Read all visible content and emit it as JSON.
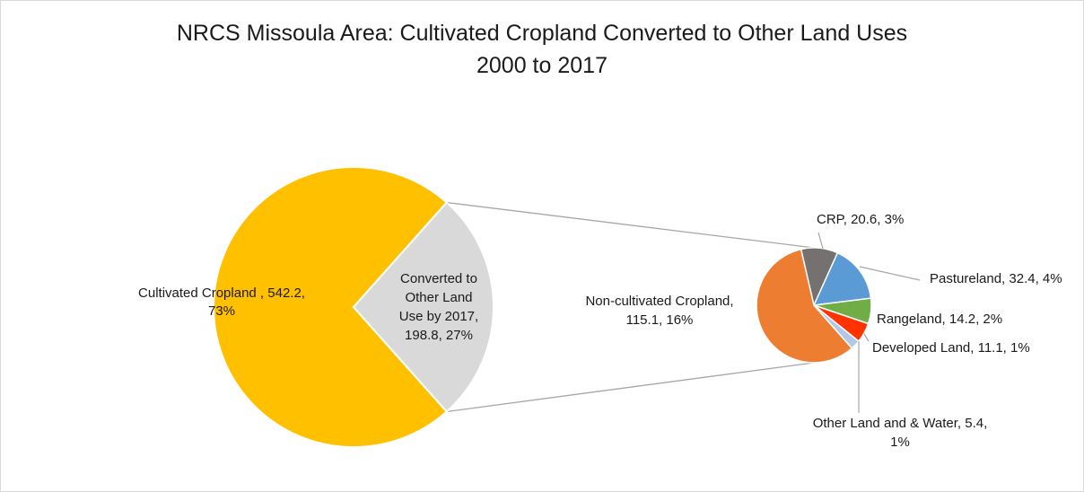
{
  "chart_data": {
    "type": "pie",
    "title_lines": [
      "NRCS Missoula Area: Cultivated Cropland Converted to Other Land Uses",
      "2000 to 2017"
    ],
    "primary": {
      "slices": [
        {
          "label_lines": [
            "Cultivated Cropland , 542.2,",
            "73%"
          ],
          "value": 542.2,
          "percent": "73%",
          "color": "#FFC000"
        },
        {
          "label_lines": [
            "Converted to",
            "Other Land",
            "Use by 2017,",
            "198.8, 27%"
          ],
          "value": 198.8,
          "percent": "27%",
          "color": "#D9D9D9"
        }
      ]
    },
    "secondary": {
      "slices": [
        {
          "label_lines": [
            "CRP, 20.6, 3%"
          ],
          "value": 20.6,
          "percent": "3%",
          "color": "#767171"
        },
        {
          "label_lines": [
            "Pastureland, 32.4, 4%"
          ],
          "value": 32.4,
          "percent": "4%",
          "color": "#5B9BD5"
        },
        {
          "label_lines": [
            "Rangeland, 14.2, 2%"
          ],
          "value": 14.2,
          "percent": "2%",
          "color": "#70AD47"
        },
        {
          "label_lines": [
            "Developed Land, 11.1, 1%"
          ],
          "value": 11.1,
          "percent": "1%",
          "color": "#FF3300"
        },
        {
          "label_lines": [
            "Other Land and & Water, 5.4,",
            "1%"
          ],
          "value": 5.4,
          "percent": "1%",
          "color": "#B4C7E7"
        },
        {
          "label_lines": [
            "Non-cultivated Cropland,",
            "115.1, 16%"
          ],
          "value": 115.1,
          "percent": "16%",
          "color": "#ED7D31"
        }
      ]
    },
    "legend": "none"
  }
}
